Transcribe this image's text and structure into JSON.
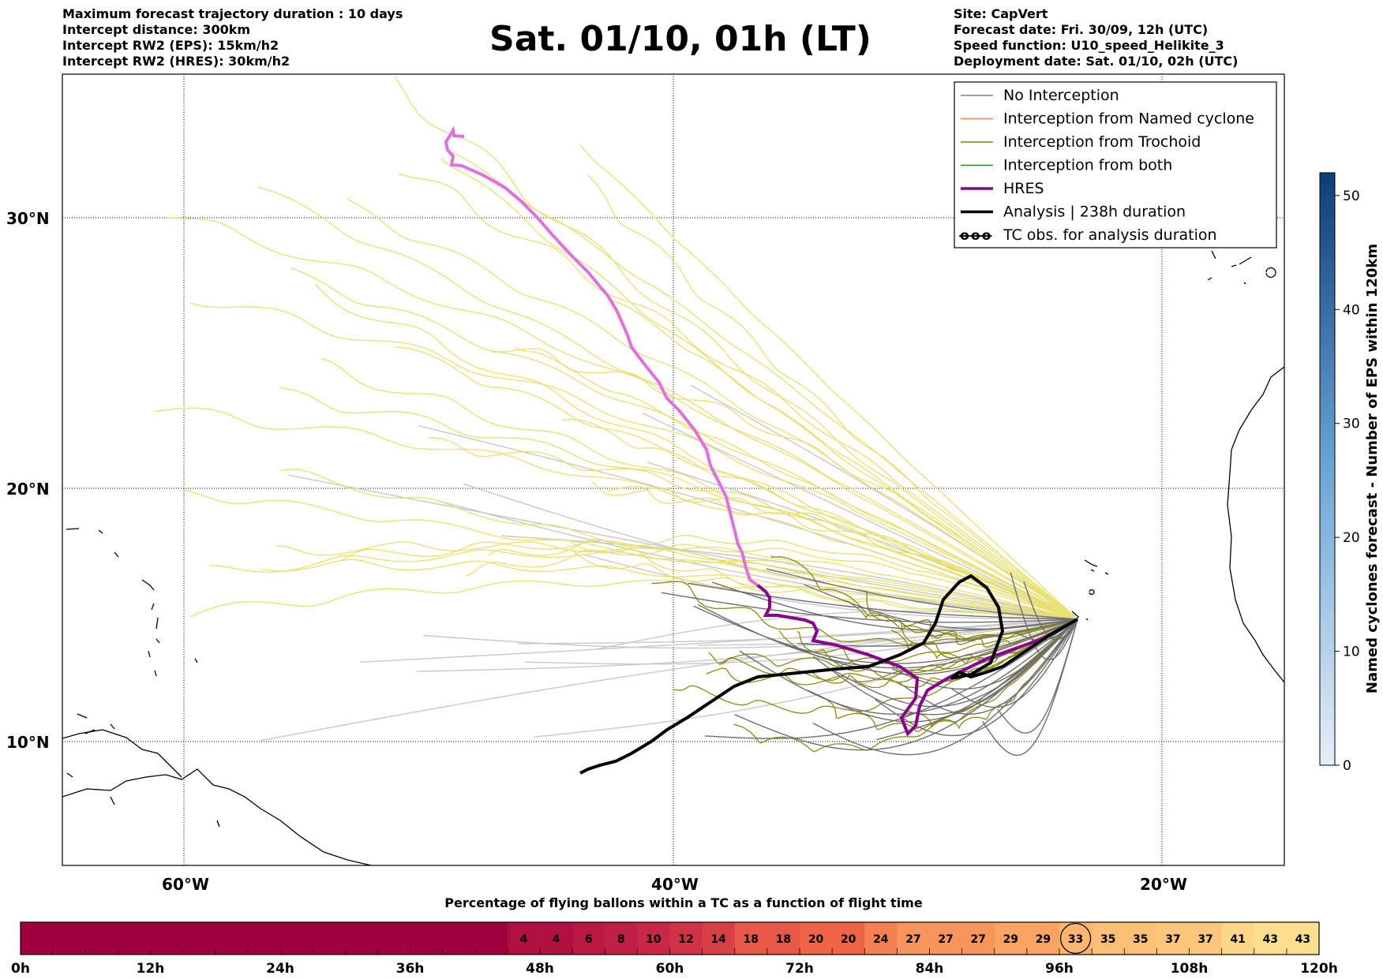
{
  "header": {
    "left": [
      "Maximum forecast trajectory duration : 10 days",
      "Intercept distance: 300km",
      "Intercept RW2 (EPS):  15km/h2",
      "Intercept RW2 (HRES): 30km/h2"
    ],
    "title": "Sat. 01/10, 01h (LT)",
    "right": [
      "Site: CapVert",
      "Forecast date: Fri. 30/09, 12h (UTC)",
      "Speed function: U10_speed_Helikite_3",
      "Deployment date: Sat. 01/10, 02h (UTC)"
    ]
  },
  "map": {
    "lat_labels": [
      "30°N",
      "20°N",
      "10°N"
    ],
    "lon_labels": [
      "60°W",
      "40°W",
      "20°W"
    ],
    "lat_values": [
      30,
      20,
      10
    ],
    "lon_values": [
      -60,
      -40,
      -20
    ]
  },
  "legend": [
    {
      "label": "No Interception",
      "color": "#808080"
    },
    {
      "label": "Interception from Named cyclone",
      "color": "#ff7f50"
    },
    {
      "label": "Interception from Trochoid",
      "color": "#808000"
    },
    {
      "label": "Interception from both",
      "color": "#228b22"
    },
    {
      "label": "HRES",
      "color": "#8b008b"
    },
    {
      "label": "Analysis | 238h duration",
      "color": "#000000"
    },
    {
      "label": "TC obs. for analysis duration",
      "color": "#000000",
      "symbol": "ꝋꝋꝋ"
    }
  ],
  "colorbar_right": {
    "label": "Named cyclones forecast - Number of EPS within 120km",
    "ticks": [
      "0",
      "10",
      "20",
      "30",
      "40",
      "50"
    ],
    "min": 0,
    "max": 52,
    "color_low": "#e6eef8",
    "color_high": "#0d3d78"
  },
  "flight_bar": {
    "title": "Percentage of flying ballons within a TC as a function of flight time",
    "time_labels": [
      "0h",
      "12h",
      "24h",
      "36h",
      "48h",
      "60h",
      "72h",
      "84h",
      "96h",
      "108h",
      "120h"
    ],
    "segments": 40,
    "values": [
      "",
      "",
      "",
      "",
      "",
      "",
      "",
      "",
      "",
      "",
      "",
      "",
      "",
      "",
      "",
      "4",
      "4",
      "6",
      "8",
      "10",
      "12",
      "14",
      "18",
      "18",
      "20",
      "20",
      "24",
      "27",
      "27",
      "27",
      "29",
      "29",
      "33",
      "35",
      "35",
      "37",
      "37",
      "41",
      "43",
      "43"
    ],
    "circled_index": 32
  }
}
